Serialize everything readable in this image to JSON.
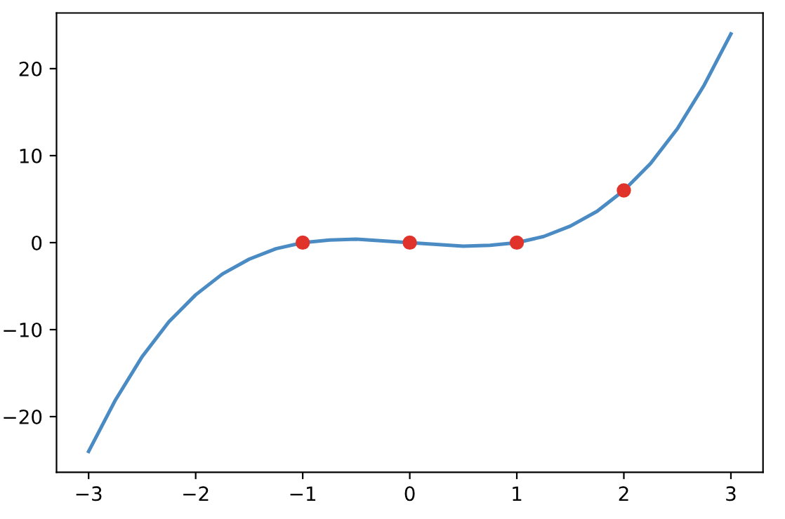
{
  "chart_data": {
    "type": "line",
    "series": [
      {
        "color": "#4a8bc4",
        "x": [
          -3,
          -2.75,
          -2.5,
          -2.25,
          -2,
          -1.75,
          -1.5,
          -1.25,
          -1,
          -0.75,
          -0.5,
          -0.25,
          0,
          0.25,
          0.5,
          0.75,
          1,
          1.25,
          1.5,
          1.75,
          2,
          2.25,
          2.5,
          2.75,
          3
        ],
        "values": [
          -24,
          -18.1,
          -13.1,
          -9.1,
          -6,
          -3.6,
          -1.9,
          -0.7,
          0,
          0.3,
          0.4,
          0.2,
          0,
          -0.2,
          -0.4,
          -0.3,
          0,
          0.7,
          1.9,
          3.6,
          6,
          9.1,
          13.1,
          18.1,
          24
        ]
      },
      {
        "type": "scatter",
        "color": "#e0332c",
        "marker": "circle",
        "x": [
          -1,
          0,
          1,
          2
        ],
        "values": [
          0,
          0,
          0,
          6
        ]
      }
    ],
    "xlim": [
      -3.3,
      3.3
    ],
    "ylim": [
      -26.4,
      26.4
    ],
    "xticks": [
      {
        "value": -3,
        "label": "−3"
      },
      {
        "value": -2,
        "label": "−2"
      },
      {
        "value": -1,
        "label": "−1"
      },
      0,
      1,
      2,
      3
    ],
    "yticks": [
      {
        "value": -20,
        "label": "−20"
      },
      {
        "value": -10,
        "label": "−10"
      },
      0,
      10,
      20
    ],
    "grid": false,
    "legend": false
  }
}
